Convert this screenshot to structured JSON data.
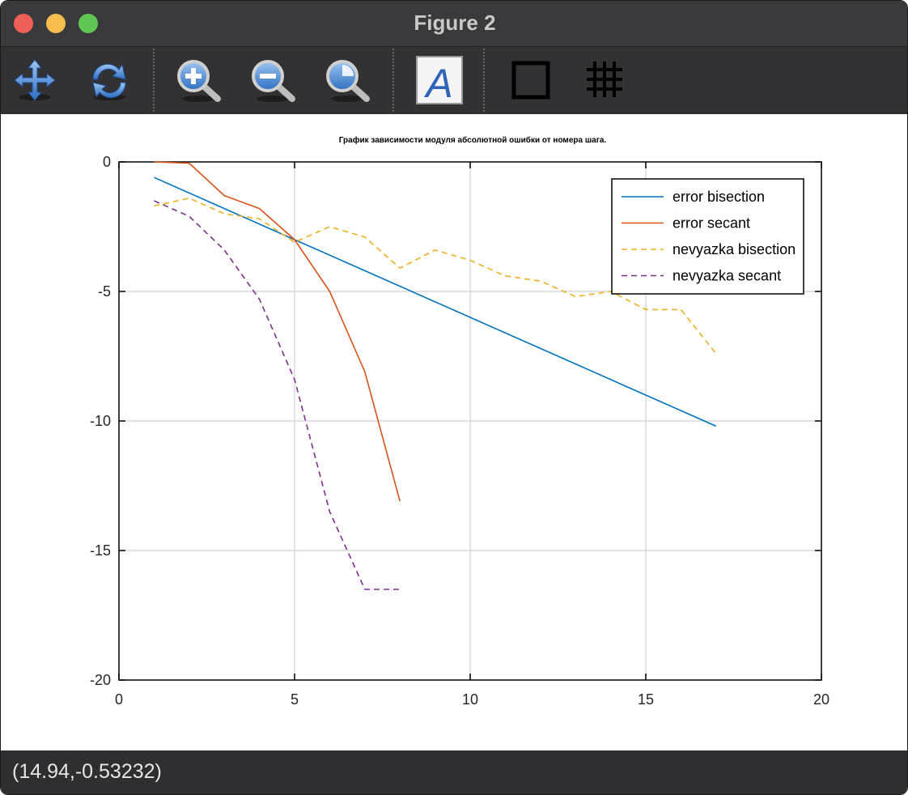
{
  "window": {
    "title": "Figure 2"
  },
  "toolbar": {
    "buttons": [
      {
        "name": "pan",
        "icon": "pan-arrows-icon"
      },
      {
        "name": "rotate",
        "icon": "rotate-icon"
      },
      {
        "name": "zoom-in",
        "icon": "zoom-in-icon"
      },
      {
        "name": "zoom-out",
        "icon": "zoom-out-icon"
      },
      {
        "name": "zoom-auto",
        "icon": "zoom-auto-icon"
      },
      {
        "name": "insert-text",
        "icon": "text-a-icon"
      },
      {
        "name": "toggle-box",
        "icon": "box-icon"
      },
      {
        "name": "toggle-grid",
        "icon": "grid-icon"
      }
    ]
  },
  "status": {
    "coords": "(14.94,-0.53232)"
  },
  "chart_data": {
    "type": "line",
    "title": "График зависимости модуля абсолютной ошибки от номера шага.",
    "xlabel": "",
    "ylabel": "",
    "xlim": [
      0,
      20
    ],
    "ylim": [
      -20,
      0
    ],
    "xticks": [
      "0",
      "5",
      "10",
      "15",
      "20"
    ],
    "yticks": [
      "0",
      "-5",
      "-10",
      "-15",
      "-20"
    ],
    "grid": true,
    "legend_position": "top-right",
    "series": [
      {
        "name": "error bisection",
        "color": "#0072bd",
        "dash": false,
        "x": [
          1,
          17
        ],
        "y": [
          -0.6,
          -10.2
        ]
      },
      {
        "name": "error secant",
        "color": "#d95319",
        "dash": false,
        "x": [
          1,
          2,
          3,
          4,
          5,
          6,
          7,
          8
        ],
        "y": [
          0.0,
          -0.05,
          -1.3,
          -1.8,
          -3.0,
          -5.0,
          -8.1,
          -13.1
        ]
      },
      {
        "name": "nevyazka bisection",
        "color": "#edb120",
        "dash": true,
        "x": [
          1,
          2,
          3,
          4,
          5,
          6,
          7,
          8,
          9,
          10,
          11,
          12,
          13,
          14,
          15,
          16,
          17
        ],
        "y": [
          -1.7,
          -1.4,
          -2.0,
          -2.2,
          -3.1,
          -2.5,
          -2.9,
          -4.1,
          -3.4,
          -3.8,
          -4.4,
          -4.6,
          -5.2,
          -5.0,
          -5.7,
          -5.7,
          -7.4
        ]
      },
      {
        "name": "nevyazka secant",
        "color": "#7e2f8e",
        "dash": true,
        "x": [
          1,
          2,
          3,
          4,
          5,
          6,
          7,
          8
        ],
        "y": [
          -1.5,
          -2.1,
          -3.4,
          -5.3,
          -8.4,
          -13.5,
          -16.5,
          -16.5
        ]
      }
    ]
  }
}
